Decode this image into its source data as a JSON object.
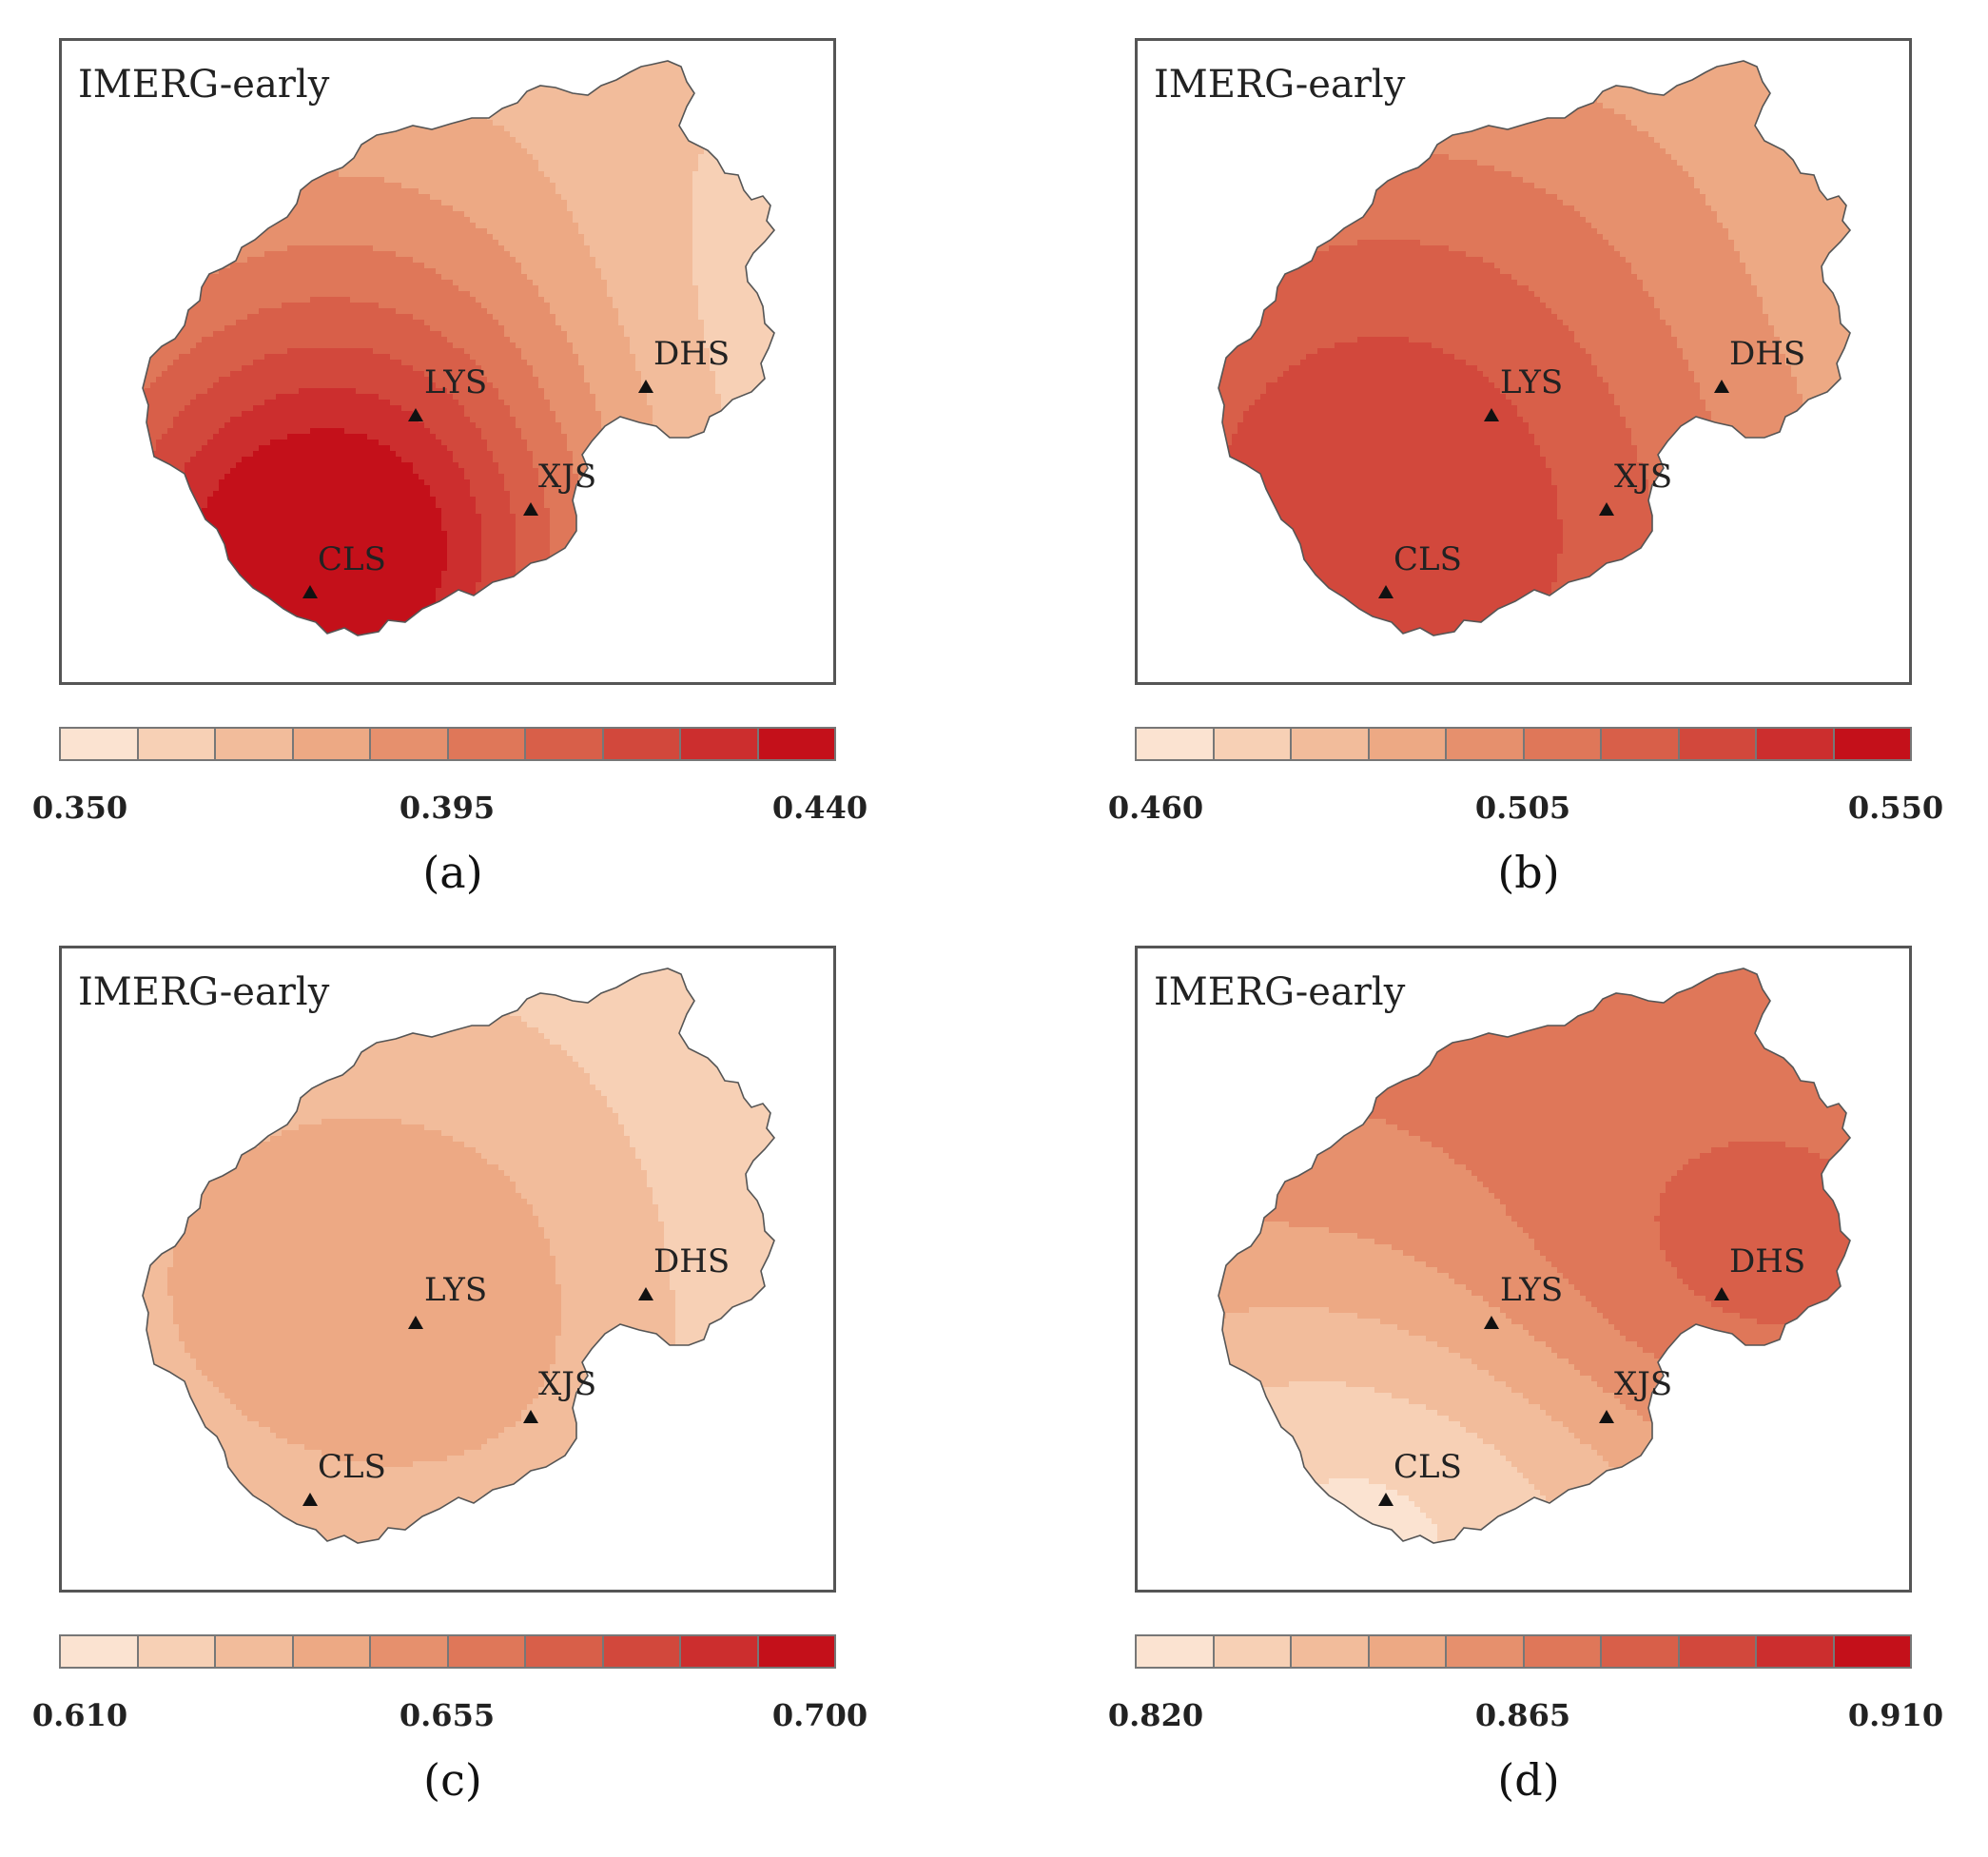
{
  "panels": [
    {
      "id": "a",
      "map_title": "IMERG-early",
      "panel_label": "(a)",
      "scale": {
        "min": 0.35,
        "max": 0.44,
        "steps": 10,
        "tick_labels": [
          "0.350",
          "0.395",
          "0.440"
        ]
      },
      "field": {
        "base": 0.371,
        "gradient": [
          0.0,
          0.0
        ],
        "bumps": [
          {
            "station": "LYS",
            "amp": 0.046,
            "sigma": 0.3
          },
          {
            "station": "CLS",
            "amp": 0.052,
            "sigma": 0.22
          },
          {
            "station": "DHS",
            "amp": -0.025,
            "sigma": 0.3
          }
        ]
      }
    },
    {
      "id": "b",
      "map_title": "IMERG-early",
      "panel_label": "(b)",
      "scale": {
        "min": 0.46,
        "max": 0.55,
        "steps": 10,
        "tick_labels": [
          "0.460",
          "0.505",
          "0.550"
        ]
      },
      "field": {
        "base": 0.478,
        "gradient": [
          0.0,
          0.0
        ],
        "bumps": [
          {
            "station": "LYS",
            "amp": 0.036,
            "sigma": 0.42
          },
          {
            "station": "CLS",
            "amp": 0.026,
            "sigma": 0.45
          },
          {
            "station": "DHS",
            "amp": -0.016,
            "sigma": 0.3
          }
        ]
      }
    },
    {
      "id": "c",
      "map_title": "IMERG-early",
      "panel_label": "(c)",
      "scale": {
        "min": 0.61,
        "max": 0.7,
        "steps": 10,
        "tick_labels": [
          "0.610",
          "0.655",
          "0.700"
        ]
      },
      "field": {
        "base": 0.623,
        "gradient": [
          0.0,
          0.0
        ],
        "bumps": [
          {
            "station": "LYS",
            "amp": 0.034,
            "sigma": 0.3
          },
          {
            "station": "CLS",
            "amp": -0.008,
            "sigma": 0.3
          },
          {
            "station": "DHS",
            "amp": -0.012,
            "sigma": 0.3
          }
        ]
      }
    },
    {
      "id": "d",
      "map_title": "IMERG-early",
      "panel_label": "(d)",
      "scale": {
        "min": 0.82,
        "max": 0.91,
        "steps": 10,
        "tick_labels": [
          "0.820",
          "0.865",
          "0.910"
        ]
      },
      "field": {
        "base": 0.872,
        "gradient": [
          0.0,
          0.0
        ],
        "bumps": [
          {
            "station": "LYS",
            "amp": 0.013,
            "sigma": 0.25
          },
          {
            "station": "DHS",
            "amp": 0.012,
            "sigma": 0.18
          },
          {
            "station": "CLS",
            "amp": -0.05,
            "sigma": 0.35
          }
        ]
      }
    }
  ],
  "stations": [
    {
      "name": "LYS",
      "label": "LYS"
    },
    {
      "name": "DHS",
      "label": "DHS"
    },
    {
      "name": "XJS",
      "label": "XJS"
    },
    {
      "name": "CLS",
      "label": "CLS"
    }
  ],
  "colors": {
    "palette": [
      "#fbe3d1",
      "#f7d0b5",
      "#f2bc9b",
      "#eda984",
      "#e6906d",
      "#df7759",
      "#d85f49",
      "#d2483c",
      "#cc2e2e",
      "#c4101a"
    ],
    "frame": "#555555",
    "outline": "#555555"
  }
}
